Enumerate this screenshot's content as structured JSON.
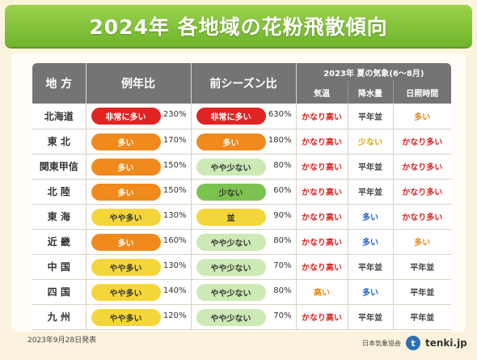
{
  "title": "2024年  各地域の花粉飛散傾向",
  "header": {
    "region": "地 方",
    "avg_ratio": "例年比",
    "prev_ratio": "前シーズン比",
    "summer": "2023年  夏の気象(6〜8月)",
    "temp": "気温",
    "rain": "降水量",
    "sun": "日照時間"
  },
  "rows": [
    {
      "region": "北海道",
      "avg": {
        "label": "非常に多い",
        "style": "red"
      },
      "avg_pct": "230%",
      "prev": {
        "label": "非常に多い",
        "style": "red"
      },
      "prev_pct": "630%",
      "temp": {
        "text": "かなり高い",
        "color": "red"
      },
      "rain": {
        "text": "平年並",
        "color": "dark"
      },
      "sun": {
        "text": "多い",
        "color": "orange"
      }
    },
    {
      "region": "東 北",
      "avg": {
        "label": "多い",
        "style": "orange"
      },
      "avg_pct": "170%",
      "prev": {
        "label": "多い",
        "style": "orange"
      },
      "prev_pct": "180%",
      "temp": {
        "text": "かなり高い",
        "color": "red"
      },
      "rain": {
        "text": "少ない",
        "color": "gold"
      },
      "sun": {
        "text": "かなり多い",
        "color": "red"
      }
    },
    {
      "region": "関東甲信",
      "avg": {
        "label": "多い",
        "style": "orange"
      },
      "avg_pct": "150%",
      "prev": {
        "label": "やや少ない",
        "style": "lightgreen"
      },
      "prev_pct": "80%",
      "temp": {
        "text": "かなり高い",
        "color": "red"
      },
      "rain": {
        "text": "平年並",
        "color": "dark"
      },
      "sun": {
        "text": "かなり多い",
        "color": "red"
      }
    },
    {
      "region": "北 陸",
      "avg": {
        "label": "多い",
        "style": "orange"
      },
      "avg_pct": "150%",
      "prev": {
        "label": "少ない",
        "style": "green"
      },
      "prev_pct": "60%",
      "temp": {
        "text": "かなり高い",
        "color": "red"
      },
      "rain": {
        "text": "平年並",
        "color": "dark"
      },
      "sun": {
        "text": "かなり多い",
        "color": "red"
      }
    },
    {
      "region": "東 海",
      "avg": {
        "label": "やや多い",
        "style": "yellow"
      },
      "avg_pct": "130%",
      "prev": {
        "label": "並",
        "style": "yellow"
      },
      "prev_pct": "90%",
      "temp": {
        "text": "かなり高い",
        "color": "red"
      },
      "rain": {
        "text": "多い",
        "color": "blue"
      },
      "sun": {
        "text": "かなり多い",
        "color": "red"
      }
    },
    {
      "region": "近 畿",
      "avg": {
        "label": "多い",
        "style": "orange"
      },
      "avg_pct": "160%",
      "prev": {
        "label": "やや少ない",
        "style": "lightgreen"
      },
      "prev_pct": "80%",
      "temp": {
        "text": "かなり高い",
        "color": "red"
      },
      "rain": {
        "text": "多い",
        "color": "blue"
      },
      "sun": {
        "text": "多い",
        "color": "orange"
      }
    },
    {
      "region": "中 国",
      "avg": {
        "label": "やや多い",
        "style": "yellow"
      },
      "avg_pct": "130%",
      "prev": {
        "label": "やや少ない",
        "style": "lightgreen"
      },
      "prev_pct": "70%",
      "temp": {
        "text": "かなり高い",
        "color": "red"
      },
      "rain": {
        "text": "平年並",
        "color": "dark"
      },
      "sun": {
        "text": "平年並",
        "color": "dark"
      }
    },
    {
      "region": "四 国",
      "avg": {
        "label": "やや多い",
        "style": "yellow"
      },
      "avg_pct": "140%",
      "prev": {
        "label": "やや少ない",
        "style": "lightgreen"
      },
      "prev_pct": "80%",
      "temp": {
        "text": "高い",
        "color": "orange"
      },
      "rain": {
        "text": "多い",
        "color": "blue"
      },
      "sun": {
        "text": "平年並",
        "color": "dark"
      }
    },
    {
      "region": "九 州",
      "avg": {
        "label": "やや多い",
        "style": "yellow"
      },
      "avg_pct": "120%",
      "prev": {
        "label": "やや少ない",
        "style": "lightgreen"
      },
      "prev_pct": "70%",
      "temp": {
        "text": "かなり高い",
        "color": "red"
      },
      "rain": {
        "text": "平年並",
        "color": "dark"
      },
      "sun": {
        "text": "平年並",
        "color": "dark"
      }
    }
  ],
  "pill_styles": {
    "red": {
      "bg": "#e02424",
      "fg": "#ffffff"
    },
    "orange": {
      "bg": "#f08a1c",
      "fg": "#ffffff"
    },
    "yellow": {
      "bg": "#f5d63a",
      "fg": "#333333"
    },
    "lightgreen": {
      "bg": "#cde9b5",
      "fg": "#333333"
    },
    "green": {
      "bg": "#7cc24f",
      "fg": "#333333"
    }
  },
  "text_colors": {
    "red": "#d81f1f",
    "orange": "#e8870f",
    "gold": "#e0a800",
    "blue": "#1f62c9",
    "dark": "#444444"
  },
  "footer": {
    "date": "2023年9月28日発表",
    "org": "日本気象協会",
    "logo_mark": "t",
    "logo_text": "tenki.jp"
  }
}
